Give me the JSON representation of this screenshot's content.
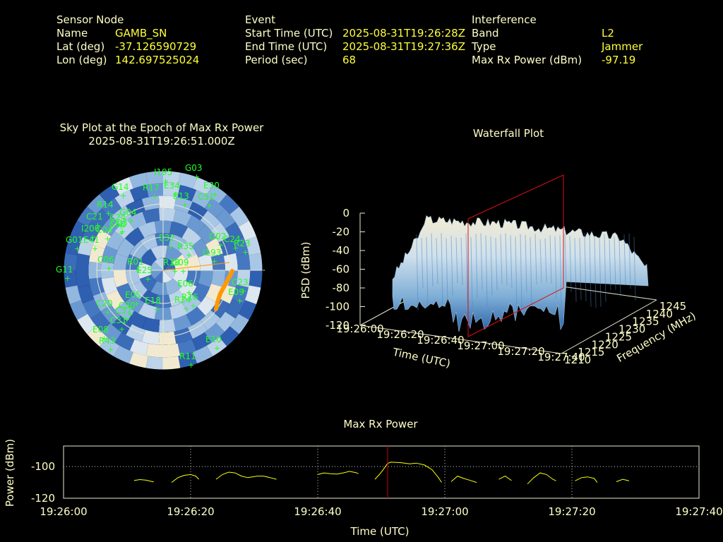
{
  "header": {
    "sensor": {
      "title": "Sensor Node",
      "name_label": "Name",
      "name_value": "GAMB_SN",
      "lat_label": "Lat (deg)",
      "lat_value": "-37.126590729",
      "lon_label": "Lon (deg)",
      "lon_value": "142.697525024"
    },
    "event": {
      "title": "Event",
      "start_label": "Start Time (UTC)",
      "start_value": "2025-08-31T19:26:28Z",
      "end_label": "End Time (UTC)",
      "end_value": "2025-08-31T19:27:36Z",
      "period_label": "Period (sec)",
      "period_value": "68"
    },
    "interference": {
      "title": "Interference",
      "band_label": "Band",
      "band_value": "L2",
      "type_label": "Type",
      "type_value": "Jammer",
      "power_label": "Max Rx Power (dBm)",
      "power_value": "-97.19"
    }
  },
  "colors": {
    "label_text": "#ffffc8",
    "value_text": "#ffff3c",
    "satellite_label": "#22ff22",
    "max_marker": "#cc0000",
    "jammer_track": "#ff9900",
    "power_line": "#ffff00"
  },
  "chart_data": [
    {
      "type": "scatter",
      "title": "Sky Plot at the Epoch of Max Rx Power",
      "subtitle": "2025-08-31T19:26:51.000Z",
      "projection": "polar",
      "satellites": [
        "I195",
        "G03",
        "G14",
        "R17",
        "E34",
        "E30",
        "C51",
        "E13",
        "C21",
        "R14",
        "C24",
        "C58",
        "G01",
        "C04",
        "I206",
        "C03",
        "R35",
        "G09",
        "C06",
        "I193",
        "G02",
        "C24",
        "R23",
        "E06",
        "E05",
        "E09",
        "C23",
        "G11",
        "R11",
        "R24",
        "C37",
        "E41",
        "E18",
        "C31",
        "E32",
        "C30",
        "C20",
        "E25",
        "R16",
        "E08",
        "R43",
        "E10",
        "G04",
        "R01",
        "R18"
      ],
      "jammer_track_color": "orange"
    },
    {
      "type": "area",
      "title": "Waterfall Plot",
      "xlabel": "Time (UTC)",
      "ylabel": "Frequency (MHz)",
      "zlabel": "PSD (dBm)",
      "x_ticks": [
        "19:26:00",
        "19:26:20",
        "19:26:40",
        "19:27:00",
        "19:27:20",
        "19:27:40"
      ],
      "y_ticks": [
        "1210",
        "1215",
        "1220",
        "1225",
        "1230",
        "1235",
        "1240",
        "1245"
      ],
      "z_ticks": [
        "0",
        "-20",
        "-40",
        "-60",
        "-80",
        "-100",
        "-120"
      ],
      "zlim": [
        -120,
        0
      ],
      "ylim": [
        1210,
        1245
      ]
    },
    {
      "type": "line",
      "title": "Max Rx Power",
      "xlabel": "Time (UTC)",
      "ylabel": "Power (dBm)",
      "x_ticks": [
        "19:26:00",
        "19:26:20",
        "19:26:40",
        "19:27:00",
        "19:27:20",
        "19:27:40"
      ],
      "y_ticks": [
        "-100",
        "-120"
      ],
      "xlim_sec": [
        0,
        100
      ],
      "ylim": [
        -120,
        -87
      ],
      "max_epoch_sec": 51,
      "grid": true,
      "segments": [
        [
          [
            11.1,
            -108.8
          ],
          [
            12.0,
            -108.2
          ],
          [
            13.0,
            -108.6
          ],
          [
            14.0,
            -109.5
          ],
          [
            14.2,
            -109.7
          ]
        ],
        [
          [
            17.0,
            -110
          ],
          [
            18.0,
            -107
          ],
          [
            19.0,
            -105.5
          ],
          [
            20.0,
            -105
          ],
          [
            20.8,
            -106
          ],
          [
            21.3,
            -108
          ]
        ],
        [
          [
            24.0,
            -108
          ],
          [
            25.0,
            -105
          ],
          [
            26.0,
            -103.5
          ],
          [
            27.0,
            -104
          ],
          [
            28.0,
            -106
          ],
          [
            29.0,
            -107
          ],
          [
            30.5,
            -106
          ],
          [
            31.5,
            -106
          ],
          [
            32.5,
            -107
          ],
          [
            33.5,
            -108
          ]
        ],
        [
          [
            40.0,
            -105
          ],
          [
            41.0,
            -104
          ],
          [
            42.0,
            -104.5
          ],
          [
            43.0,
            -104.7
          ],
          [
            44.0,
            -104
          ],
          [
            45.0,
            -103
          ],
          [
            46.0,
            -103.8
          ],
          [
            46.4,
            -104.5
          ]
        ],
        [
          [
            49.0,
            -108
          ],
          [
            49.7,
            -105
          ],
          [
            50.3,
            -102
          ],
          [
            51.0,
            -98
          ],
          [
            51.5,
            -97.2
          ],
          [
            53.0,
            -97.5
          ],
          [
            54.5,
            -98.3
          ],
          [
            55.5,
            -97.8
          ],
          [
            56.8,
            -99
          ],
          [
            58.0,
            -102
          ],
          [
            59.0,
            -107
          ],
          [
            59.5,
            -110
          ]
        ],
        [
          [
            61.0,
            -109.5
          ],
          [
            62.0,
            -106
          ],
          [
            63.0,
            -107.5
          ],
          [
            64.0,
            -108.7
          ],
          [
            65.0,
            -110
          ]
        ],
        [
          [
            68.5,
            -108
          ],
          [
            69.5,
            -106
          ],
          [
            70.5,
            -108.8
          ]
        ],
        [
          [
            73.0,
            -111
          ],
          [
            74.0,
            -107
          ],
          [
            75.0,
            -104
          ],
          [
            76.0,
            -105
          ],
          [
            77.0,
            -108
          ],
          [
            77.5,
            -109
          ]
        ],
        [
          [
            80.5,
            -109
          ],
          [
            81.5,
            -107
          ],
          [
            82.5,
            -106.5
          ],
          [
            83.5,
            -107.5
          ],
          [
            84.0,
            -110
          ]
        ],
        [
          [
            87.0,
            -109.5
          ],
          [
            88.0,
            -108
          ],
          [
            89.0,
            -109
          ]
        ]
      ]
    }
  ]
}
